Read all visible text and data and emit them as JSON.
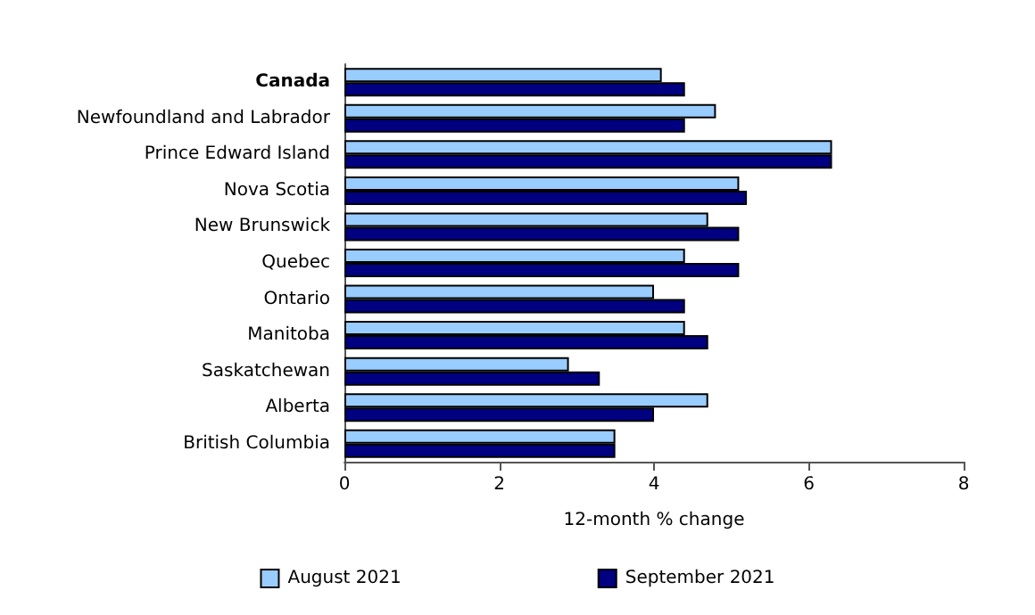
{
  "chart_data": {
    "type": "bar",
    "orientation": "horizontal",
    "xlabel": "12-month % change",
    "categories": [
      "Canada",
      "Newfoundland and Labrador",
      "Prince Edward Island",
      "Nova Scotia",
      "New Brunswick",
      "Quebec",
      "Ontario",
      "Manitoba",
      "Saskatchewan",
      "Alberta",
      "British Columbia"
    ],
    "series": [
      {
        "name": "August 2021",
        "color": "#99ccff",
        "values": [
          4.1,
          4.8,
          6.3,
          5.1,
          4.7,
          4.4,
          4.0,
          4.4,
          2.9,
          4.7,
          3.5
        ]
      },
      {
        "name": "September 2021",
        "color": "#000080",
        "values": [
          4.4,
          4.4,
          6.3,
          5.2,
          5.1,
          5.1,
          4.4,
          4.7,
          3.3,
          4.0,
          3.5
        ]
      }
    ],
    "xlim": [
      0,
      8
    ],
    "xticks": [
      0,
      2,
      4,
      6,
      8
    ],
    "grid": false,
    "legend": "bottom"
  }
}
